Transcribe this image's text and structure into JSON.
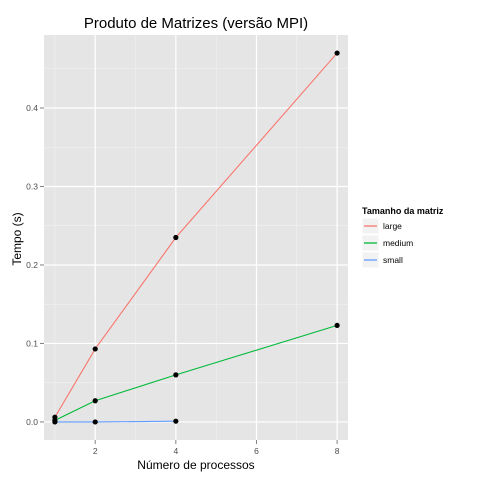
{
  "chart_data": {
    "type": "line",
    "title": "Produto de Matrizes (versão MPI)",
    "xlabel": "Número de processos",
    "ylabel": "Tempo (s)",
    "xlim": [
      0.73,
      8.27
    ],
    "ylim": [
      -0.023,
      0.493
    ],
    "x_ticks": [
      2,
      4,
      6,
      8
    ],
    "x_tick_labels": [
      "2",
      "4",
      "6",
      "8"
    ],
    "y_ticks": [
      0.0,
      0.1,
      0.2,
      0.3,
      0.4
    ],
    "y_tick_labels": [
      "0.0",
      "0.1",
      "0.2",
      "0.3",
      "0.4"
    ],
    "grid": true,
    "legend": {
      "title": "Tamanho da matriz",
      "position": "right"
    },
    "series": [
      {
        "name": "large",
        "color": "#F8766D",
        "x": [
          1,
          2,
          4,
          8
        ],
        "y": [
          0.006,
          0.093,
          0.235,
          0.47
        ]
      },
      {
        "name": "medium",
        "color": "#00BA38",
        "x": [
          1,
          2,
          4,
          8
        ],
        "y": [
          0.002,
          0.027,
          0.06,
          0.123
        ]
      },
      {
        "name": "small",
        "color": "#619CFF",
        "x": [
          1,
          2,
          4
        ],
        "y": [
          0.0,
          0.0,
          0.001
        ]
      }
    ],
    "point_color": "#000000"
  }
}
